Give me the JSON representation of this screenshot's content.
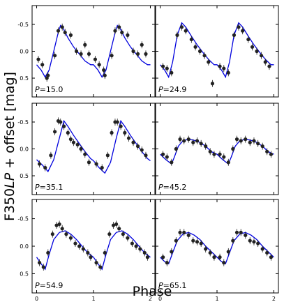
{
  "figure": {
    "ylabel_pre": "F350",
    "ylabel_ital": "LP",
    "ylabel_post": " + offset [mag]",
    "xlabel": "Phase",
    "line_color": "#0000dd",
    "point_color": "#222222"
  },
  "chart_data": [
    {
      "type": "scatter",
      "panel": "P15.0",
      "annotation_var": "P",
      "annotation_value": "=15.0",
      "xlim": [
        -0.08,
        2.08
      ],
      "ylim": [
        0.85,
        -0.85
      ],
      "yticks": [
        "-0.5",
        "0.0",
        "0.5"
      ],
      "xticks": [
        "0",
        "1",
        "2"
      ],
      "model_x": [
        0,
        0.08,
        0.15,
        0.22,
        0.3,
        0.38,
        0.42,
        0.47,
        0.55,
        0.65,
        0.75,
        0.85,
        0.95,
        1.0,
        1.08,
        1.15,
        1.22,
        1.3,
        1.38,
        1.42,
        1.47,
        1.55,
        1.65,
        1.75,
        1.85,
        1.95,
        2.0
      ],
      "model_y": [
        0.25,
        0.35,
        0.48,
        0.35,
        0.0,
        -0.35,
        -0.48,
        -0.42,
        -0.25,
        -0.08,
        0.05,
        0.18,
        0.25,
        0.25,
        0.35,
        0.48,
        0.35,
        0.0,
        -0.35,
        -0.48,
        -0.42,
        -0.25,
        -0.08,
        0.05,
        0.18,
        0.25,
        0.25
      ],
      "points_x": [
        0.03,
        0.1,
        0.18,
        0.2,
        0.32,
        0.38,
        0.45,
        0.5,
        0.6,
        0.7,
        0.78,
        0.85,
        0.92,
        1.03,
        1.1,
        1.18,
        1.2,
        1.32,
        1.38,
        1.45,
        1.5,
        1.6,
        1.7,
        1.78,
        1.85,
        1.92
      ],
      "points_y": [
        0.15,
        0.25,
        0.5,
        0.45,
        0.08,
        -0.38,
        -0.45,
        -0.35,
        -0.3,
        0.0,
        0.05,
        -0.12,
        0.05,
        0.15,
        0.25,
        0.35,
        0.45,
        0.08,
        -0.38,
        -0.45,
        -0.35,
        -0.3,
        0.0,
        0.05,
        -0.12,
        0.05
      ]
    },
    {
      "type": "scatter",
      "panel": "P24.9",
      "annotation_var": "P",
      "annotation_value": "=24.9",
      "xlim": [
        -0.08,
        2.08
      ],
      "ylim": [
        0.85,
        -0.85
      ],
      "yticks": [
        "-0.5",
        "0.0",
        "0.5"
      ],
      "xticks": [
        "0",
        "1",
        "2"
      ],
      "model_x": [
        0,
        0.08,
        0.15,
        0.22,
        0.3,
        0.38,
        0.45,
        0.55,
        0.65,
        0.75,
        0.85,
        0.95,
        1.0,
        1.08,
        1.15,
        1.22,
        1.3,
        1.38,
        1.45,
        1.55,
        1.65,
        1.75,
        1.85,
        1.95,
        2.0
      ],
      "model_y": [
        0.25,
        0.35,
        0.48,
        0.2,
        -0.3,
        -0.53,
        -0.45,
        -0.28,
        -0.12,
        0.02,
        0.15,
        0.25,
        0.25,
        0.35,
        0.48,
        0.2,
        -0.3,
        -0.53,
        -0.45,
        -0.28,
        -0.12,
        0.02,
        0.15,
        0.25,
        0.25
      ],
      "points_x": [
        0.05,
        0.12,
        0.2,
        0.3,
        0.38,
        0.45,
        0.55,
        0.62,
        0.7,
        0.78,
        0.85,
        0.92,
        1.05,
        1.12,
        1.2,
        1.3,
        1.38,
        1.45,
        1.55,
        1.62,
        1.7,
        1.78,
        1.85,
        1.92
      ],
      "points_y": [
        0.28,
        0.32,
        0.4,
        -0.3,
        -0.45,
        -0.38,
        -0.22,
        -0.08,
        0.0,
        0.08,
        0.2,
        0.6,
        0.28,
        0.32,
        0.4,
        -0.3,
        -0.45,
        -0.38,
        -0.22,
        -0.08,
        0.0,
        0.08,
        0.2,
        0.28
      ]
    },
    {
      "type": "scatter",
      "panel": "P35.1",
      "annotation_var": "P",
      "annotation_value": "=35.1",
      "xlim": [
        -0.08,
        2.08
      ],
      "ylim": [
        0.85,
        -0.85
      ],
      "yticks": [
        "-0.5",
        "0.0",
        "0.5"
      ],
      "xticks": [
        "0",
        "1",
        "2"
      ],
      "model_x": [
        0,
        0.1,
        0.2,
        0.3,
        0.4,
        0.48,
        0.55,
        0.65,
        0.75,
        0.85,
        0.95,
        1.0,
        1.1,
        1.2,
        1.3,
        1.4,
        1.48,
        1.55,
        1.65,
        1.75,
        1.85,
        1.95,
        2.0
      ],
      "model_y": [
        0.2,
        0.3,
        0.42,
        0.2,
        -0.2,
        -0.52,
        -0.42,
        -0.25,
        -0.1,
        0.05,
        0.18,
        0.22,
        0.35,
        0.45,
        0.25,
        -0.2,
        -0.52,
        -0.42,
        -0.25,
        -0.1,
        0.05,
        0.18,
        0.22
      ],
      "points_x": [
        0.05,
        0.15,
        0.25,
        0.32,
        0.38,
        0.42,
        0.48,
        0.55,
        0.6,
        0.65,
        0.72,
        0.78,
        0.85,
        0.92,
        1.05,
        1.15,
        1.25,
        1.32,
        1.38,
        1.42,
        1.48,
        1.55,
        1.62,
        1.7,
        1.78,
        1.85,
        1.92
      ],
      "points_y": [
        0.28,
        0.35,
        0.12,
        -0.32,
        -0.52,
        -0.5,
        -0.42,
        -0.3,
        -0.18,
        -0.12,
        -0.08,
        0.0,
        0.1,
        0.25,
        0.28,
        0.35,
        0.12,
        -0.3,
        -0.5,
        -0.5,
        -0.42,
        -0.3,
        -0.2,
        -0.12,
        -0.05,
        0.02,
        0.12
      ]
    },
    {
      "type": "scatter",
      "panel": "P45.2",
      "annotation_var": "P",
      "annotation_value": "=45.2",
      "xlim": [
        -0.08,
        2.08
      ],
      "ylim": [
        0.85,
        -0.85
      ],
      "yticks": [
        "-0.5",
        "0.0",
        "0.5"
      ],
      "xticks": [
        "0",
        "1",
        "2"
      ],
      "model_x": [
        0,
        0.1,
        0.2,
        0.25,
        0.32,
        0.4,
        0.5,
        0.6,
        0.7,
        0.8,
        0.9,
        1.0,
        1.1,
        1.2,
        1.25,
        1.32,
        1.4,
        1.5,
        1.6,
        1.7,
        1.8,
        1.9,
        2.0
      ],
      "model_y": [
        0.1,
        0.2,
        0.28,
        0.15,
        -0.05,
        -0.15,
        -0.18,
        -0.16,
        -0.12,
        -0.05,
        0.05,
        0.1,
        0.2,
        0.28,
        0.15,
        -0.05,
        -0.15,
        -0.18,
        -0.16,
        -0.12,
        -0.05,
        0.05,
        0.1
      ],
      "points_x": [
        0.05,
        0.12,
        0.2,
        0.28,
        0.35,
        0.42,
        0.5,
        0.58,
        0.65,
        0.72,
        0.8,
        0.88,
        0.95,
        1.05,
        1.12,
        1.2,
        1.28,
        1.35,
        1.42,
        1.5,
        1.58,
        1.65,
        1.72,
        1.8,
        1.88,
        1.95
      ],
      "points_y": [
        0.1,
        0.15,
        0.25,
        0.0,
        -0.18,
        -0.15,
        -0.18,
        -0.12,
        -0.15,
        -0.1,
        -0.05,
        0.05,
        0.1,
        0.1,
        0.15,
        0.25,
        0.0,
        -0.18,
        -0.15,
        -0.18,
        -0.12,
        -0.15,
        -0.1,
        -0.05,
        0.05,
        0.1
      ]
    },
    {
      "type": "scatter",
      "panel": "P54.9",
      "annotation_var": "P",
      "annotation_value": "=54.9",
      "xlim": [
        -0.08,
        2.08
      ],
      "ylim": [
        0.85,
        -0.85
      ],
      "yticks": [
        "-0.5",
        "0.0",
        "0.5"
      ],
      "xticks": [
        "0",
        "1",
        "2"
      ],
      "model_x": [
        0,
        0.08,
        0.15,
        0.22,
        0.3,
        0.4,
        0.5,
        0.6,
        0.7,
        0.8,
        0.9,
        1.0,
        1.08,
        1.15,
        1.22,
        1.3,
        1.4,
        1.5,
        1.6,
        1.7,
        1.8,
        1.9,
        2.0
      ],
      "model_y": [
        0.2,
        0.32,
        0.42,
        0.15,
        -0.12,
        -0.25,
        -0.28,
        -0.22,
        -0.12,
        0.0,
        0.12,
        0.2,
        0.32,
        0.42,
        0.15,
        -0.12,
        -0.25,
        -0.28,
        -0.22,
        -0.12,
        0.0,
        0.12,
        0.2
      ],
      "points_x": [
        0.05,
        0.12,
        0.2,
        0.28,
        0.35,
        0.4,
        0.45,
        0.52,
        0.6,
        0.68,
        0.75,
        0.82,
        0.9,
        0.95,
        1.05,
        1.12,
        1.2,
        1.28,
        1.35,
        1.4,
        1.45,
        1.52,
        1.6,
        1.68,
        1.75,
        1.82,
        1.9,
        1.95
      ],
      "points_y": [
        0.3,
        0.38,
        0.12,
        -0.22,
        -0.38,
        -0.4,
        -0.32,
        -0.22,
        -0.15,
        -0.05,
        0.0,
        0.05,
        0.12,
        0.2,
        0.3,
        0.38,
        0.12,
        -0.22,
        -0.38,
        -0.4,
        -0.32,
        -0.22,
        -0.15,
        -0.05,
        0.0,
        0.05,
        0.12,
        0.2
      ]
    },
    {
      "type": "scatter",
      "panel": "P65.1",
      "annotation_var": "P",
      "annotation_value": "=65.1",
      "xlim": [
        -0.08,
        2.08
      ],
      "ylim": [
        0.85,
        -0.85
      ],
      "yticks": [
        "-0.5",
        "0.0",
        "0.5"
      ],
      "xticks": [
        "0",
        "1",
        "2"
      ],
      "model_x": [
        0,
        0.08,
        0.15,
        0.22,
        0.3,
        0.4,
        0.5,
        0.6,
        0.7,
        0.8,
        0.9,
        1.0,
        1.08,
        1.15,
        1.22,
        1.3,
        1.4,
        1.5,
        1.6,
        1.7,
        1.8,
        1.9,
        2.0
      ],
      "model_y": [
        0.2,
        0.28,
        0.32,
        0.12,
        -0.1,
        -0.22,
        -0.25,
        -0.2,
        -0.12,
        0.0,
        0.1,
        0.2,
        0.28,
        0.32,
        0.12,
        -0.1,
        -0.22,
        -0.25,
        -0.2,
        -0.12,
        0.0,
        0.1,
        0.2
      ],
      "points_x": [
        0.05,
        0.12,
        0.2,
        0.28,
        0.35,
        0.42,
        0.5,
        0.58,
        0.65,
        0.72,
        0.8,
        0.88,
        0.95,
        1.05,
        1.12,
        1.2,
        1.28,
        1.35,
        1.42,
        1.5,
        1.58,
        1.65,
        1.72,
        1.8,
        1.88,
        1.95
      ],
      "points_y": [
        0.2,
        0.3,
        0.1,
        -0.1,
        -0.25,
        -0.25,
        -0.2,
        -0.1,
        -0.08,
        -0.05,
        0.05,
        0.12,
        0.2,
        0.2,
        0.3,
        0.1,
        -0.1,
        -0.25,
        -0.25,
        -0.2,
        -0.1,
        -0.08,
        -0.05,
        0.05,
        0.12,
        0.2
      ]
    }
  ]
}
